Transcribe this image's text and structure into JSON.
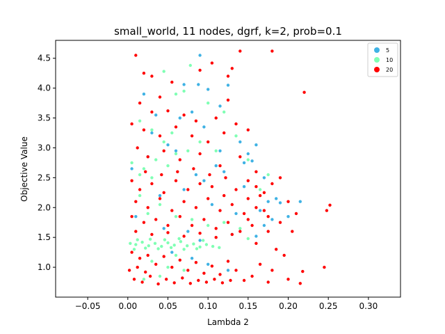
{
  "chart_data": {
    "type": "scatter",
    "title": "small_world, 11 nodes, dgrf, k=2, prob=0.1",
    "xlabel": "Lambda 2",
    "ylabel": "Objective Value",
    "xlim": [
      -0.09,
      0.34
    ],
    "ylim": [
      0.5,
      4.8
    ],
    "xticks": [
      -0.05,
      0.0,
      0.05,
      0.1,
      0.15,
      0.2,
      0.25,
      0.3
    ],
    "xtick_labels": [
      "−0.05",
      "0.00",
      "0.05",
      "0.10",
      "0.15",
      "0.20",
      "0.25",
      "0.30"
    ],
    "yticks": [
      1.0,
      1.5,
      2.0,
      2.5,
      3.0,
      3.5,
      4.0,
      4.5
    ],
    "ytick_labels": [
      "1.0",
      "1.5",
      "2.0",
      "2.5",
      "3.0",
      "3.5",
      "4.0",
      "4.5"
    ],
    "grid": false,
    "legend_position": "top-right",
    "series": [
      {
        "name": "5",
        "color": "#3fb2e4",
        "points": [
          [
            0.09,
            4.55
          ],
          [
            0.07,
            4.06
          ],
          [
            0.088,
            4.06
          ],
          [
            0.02,
            3.9
          ],
          [
            0.1,
            3.98
          ],
          [
            0.125,
            4.05
          ],
          [
            0.115,
            3.7
          ],
          [
            0.08,
            3.6
          ],
          [
            0.14,
            3.1
          ],
          [
            0.16,
            3.05
          ],
          [
            0.15,
            2.9
          ],
          [
            0.145,
            2.75
          ],
          [
            0.155,
            2.78
          ],
          [
            0.17,
            2.5
          ],
          [
            0.175,
            2.1
          ],
          [
            0.165,
            1.95
          ],
          [
            0.18,
            1.8
          ],
          [
            0.215,
            2.1
          ],
          [
            0.19,
            2.08
          ],
          [
            0.2,
            1.85
          ],
          [
            0.17,
            1.7
          ],
          [
            0.16,
            1.52
          ],
          [
            0.13,
            1.55
          ],
          [
            0.03,
            3.25
          ],
          [
            0.05,
            3.05
          ],
          [
            0.06,
            2.95
          ],
          [
            0.085,
            2.55
          ],
          [
            0.095,
            2.45
          ],
          [
            0.11,
            2.7
          ],
          [
            0.12,
            2.6
          ],
          [
            0.04,
            2.2
          ],
          [
            0.07,
            2.3
          ],
          [
            0.105,
            2.05
          ],
          [
            0.135,
            1.9
          ],
          [
            0.01,
            1.85
          ],
          [
            0.045,
            1.65
          ],
          [
            0.075,
            1.6
          ],
          [
            0.09,
            1.45
          ],
          [
            0.115,
            2.95
          ],
          [
            0.025,
            2.85
          ],
          [
            0.055,
            1.25
          ],
          [
            0.08,
            1.15
          ],
          [
            0.1,
            1.05
          ],
          [
            0.125,
            0.95
          ],
          [
            0.005,
            2.65
          ],
          [
            0.145,
            2.35
          ],
          [
            0.185,
            2.15
          ],
          [
            0.095,
            3.35
          ],
          [
            0.065,
            3.5
          ],
          [
            0.035,
            3.55
          ]
        ]
      },
      {
        "name": "10",
        "color": "#80ffb4",
        "points": [
          [
            0.045,
            4.28
          ],
          [
            0.078,
            4.38
          ],
          [
            0.06,
            3.9
          ],
          [
            0.07,
            3.95
          ],
          [
            0.12,
            3.6
          ],
          [
            0.1,
            3.75
          ],
          [
            0.015,
            3.45
          ],
          [
            0.03,
            3.3
          ],
          [
            0.045,
            3.1
          ],
          [
            0.06,
            2.9
          ],
          [
            0.005,
            2.75
          ],
          [
            0.02,
            2.65
          ],
          [
            0.035,
            2.8
          ],
          [
            0.05,
            2.7
          ],
          [
            0.075,
            2.95
          ],
          [
            0.015,
            2.55
          ],
          [
            0.03,
            2.5
          ],
          [
            0.055,
            3.25
          ],
          [
            0.09,
            3.1
          ],
          [
            0.11,
            2.95
          ],
          [
            0.135,
            3.2
          ],
          [
            0.15,
            2.8
          ],
          [
            0.165,
            2.3
          ],
          [
            0.175,
            2.55
          ],
          [
            0.015,
            2.2
          ],
          [
            0.025,
            1.9
          ],
          [
            0.04,
            2.05
          ],
          [
            0.06,
            1.85
          ],
          [
            0.08,
            1.8
          ],
          [
            0.1,
            1.7
          ],
          [
            0.12,
            1.75
          ],
          [
            0.14,
            1.65
          ],
          [
            0.15,
            1.48
          ],
          [
            0.003,
            1.4
          ],
          [
            0.01,
            1.38
          ],
          [
            0.018,
            1.42
          ],
          [
            0.026,
            1.36
          ],
          [
            0.034,
            1.4
          ],
          [
            0.042,
            1.35
          ],
          [
            0.05,
            1.41
          ],
          [
            0.058,
            1.37
          ],
          [
            0.066,
            1.43
          ],
          [
            0.074,
            1.36
          ],
          [
            0.082,
            1.39
          ],
          [
            0.09,
            1.34
          ],
          [
            0.098,
            1.38
          ],
          [
            0.106,
            1.35
          ],
          [
            0.114,
            1.33
          ],
          [
            0.008,
            1.3
          ],
          [
            0.022,
            1.32
          ],
          [
            0.038,
            1.31
          ],
          [
            0.054,
            1.33
          ],
          [
            0.07,
            1.3
          ],
          [
            0.086,
            1.31
          ],
          [
            0.03,
            1.1
          ],
          [
            0.05,
            1.0
          ],
          [
            0.07,
            0.95
          ],
          [
            0.04,
            0.85
          ],
          [
            0.02,
            0.8
          ],
          [
            0.06,
            1.2
          ],
          [
            0.012,
            1.46
          ],
          [
            0.028,
            1.47
          ],
          [
            0.046,
            1.46
          ],
          [
            0.064,
            1.48
          ],
          [
            0.094,
            1.45
          ]
        ]
      },
      {
        "name": "20",
        "color": "#ff0000",
        "points": [
          [
            0.01,
            4.55
          ],
          [
            0.02,
            4.25
          ],
          [
            0.03,
            4.2
          ],
          [
            0.055,
            4.1
          ],
          [
            0.09,
            4.3
          ],
          [
            0.105,
            4.42
          ],
          [
            0.125,
            4.2
          ],
          [
            0.13,
            4.33
          ],
          [
            0.14,
            4.62
          ],
          [
            0.18,
            4.62
          ],
          [
            0.22,
            3.93
          ],
          [
            0.125,
            3.8
          ],
          [
            0.04,
            3.85
          ],
          [
            0.015,
            3.75
          ],
          [
            0.03,
            3.6
          ],
          [
            0.05,
            3.62
          ],
          [
            0.07,
            3.55
          ],
          [
            0.085,
            3.45
          ],
          [
            0.11,
            3.5
          ],
          [
            0.005,
            3.4
          ],
          [
            0.02,
            3.3
          ],
          [
            0.04,
            3.2
          ],
          [
            0.06,
            3.35
          ],
          [
            0.08,
            3.2
          ],
          [
            0.1,
            3.1
          ],
          [
            0.12,
            3.25
          ],
          [
            0.135,
            3.4
          ],
          [
            0.15,
            3.3
          ],
          [
            0.012,
            3.0
          ],
          [
            0.025,
            2.85
          ],
          [
            0.045,
            2.95
          ],
          [
            0.065,
            2.8
          ],
          [
            0.09,
            2.9
          ],
          [
            0.115,
            2.7
          ],
          [
            0.14,
            2.85
          ],
          [
            0.16,
            2.6
          ],
          [
            0.19,
            2.5
          ],
          [
            0.18,
            2.4
          ],
          [
            0.2,
            2.1
          ],
          [
            0.21,
            1.9
          ],
          [
            0.19,
            1.75
          ],
          [
            0.175,
            1.6
          ],
          [
            0.205,
            1.6
          ],
          [
            0.195,
            1.2
          ],
          [
            0.185,
            1.3
          ],
          [
            0.165,
            1.05
          ],
          [
            0.18,
            0.95
          ],
          [
            0.2,
            0.8
          ],
          [
            0.215,
            0.73
          ],
          [
            0.218,
            0.93
          ],
          [
            0.245,
            1.0
          ],
          [
            0.248,
            1.95
          ],
          [
            0.252,
            2.04
          ],
          [
            0.175,
            0.75
          ],
          [
            0.16,
            1.4
          ],
          [
            0.155,
            0.85
          ],
          [
            0.145,
            0.78
          ],
          [
            0.135,
            0.95
          ],
          [
            0.005,
            2.45
          ],
          [
            0.015,
            2.3
          ],
          [
            0.03,
            2.4
          ],
          [
            0.045,
            2.25
          ],
          [
            0.06,
            2.45
          ],
          [
            0.075,
            2.3
          ],
          [
            0.09,
            2.4
          ],
          [
            0.105,
            2.35
          ],
          [
            0.12,
            2.2
          ],
          [
            0.135,
            2.3
          ],
          [
            0.15,
            2.15
          ],
          [
            0.165,
            2.2
          ],
          [
            0.01,
            2.1
          ],
          [
            0.025,
            2.0
          ],
          [
            0.04,
            2.15
          ],
          [
            0.055,
            1.95
          ],
          [
            0.07,
            2.1
          ],
          [
            0.085,
            2.0
          ],
          [
            0.1,
            2.15
          ],
          [
            0.115,
            1.95
          ],
          [
            0.13,
            2.05
          ],
          [
            0.145,
            1.9
          ],
          [
            0.16,
            2.0
          ],
          [
            0.175,
            1.85
          ],
          [
            0.005,
            1.85
          ],
          [
            0.02,
            1.75
          ],
          [
            0.035,
            1.8
          ],
          [
            0.05,
            1.7
          ],
          [
            0.065,
            1.85
          ],
          [
            0.08,
            1.7
          ],
          [
            0.095,
            1.8
          ],
          [
            0.11,
            1.65
          ],
          [
            0.125,
            1.75
          ],
          [
            0.14,
            1.6
          ],
          [
            0.155,
            1.7
          ],
          [
            0.01,
            1.6
          ],
          [
            0.03,
            1.55
          ],
          [
            0.05,
            1.58
          ],
          [
            0.07,
            1.52
          ],
          [
            0.09,
            1.57
          ],
          [
            0.11,
            1.5
          ],
          [
            0.13,
            1.55
          ],
          [
            0.005,
            1.25
          ],
          [
            0.015,
            1.15
          ],
          [
            0.025,
            1.2
          ],
          [
            0.035,
            1.05
          ],
          [
            0.045,
            1.18
          ],
          [
            0.055,
            1.0
          ],
          [
            0.065,
            1.12
          ],
          [
            0.075,
            0.95
          ],
          [
            0.085,
            1.08
          ],
          [
            0.095,
            0.9
          ],
          [
            0.105,
            1.02
          ],
          [
            0.115,
            0.88
          ],
          [
            0.125,
            1.1
          ],
          [
            0.008,
            0.8
          ],
          [
            0.018,
            0.75
          ],
          [
            0.028,
            0.85
          ],
          [
            0.038,
            0.72
          ],
          [
            0.048,
            0.8
          ],
          [
            0.058,
            0.74
          ],
          [
            0.068,
            0.82
          ],
          [
            0.078,
            0.73
          ],
          [
            0.088,
            0.78
          ],
          [
            0.098,
            0.75
          ],
          [
            0.108,
            0.8
          ],
          [
            0.118,
            0.74
          ],
          [
            0.128,
            0.78
          ],
          [
            0.002,
            0.95
          ],
          [
            0.012,
            1.0
          ],
          [
            0.022,
            0.92
          ],
          [
            0.062,
            2.6
          ],
          [
            0.082,
            2.65
          ],
          [
            0.102,
            2.55
          ],
          [
            0.122,
            2.5
          ],
          [
            0.042,
            2.55
          ],
          [
            0.022,
            2.6
          ],
          [
            0.15,
            2.45
          ],
          [
            0.16,
            2.35
          ],
          [
            0.17,
            2.25
          ],
          [
            0.17,
            1.95
          ],
          [
            0.15,
            1.8
          ]
        ]
      }
    ]
  }
}
